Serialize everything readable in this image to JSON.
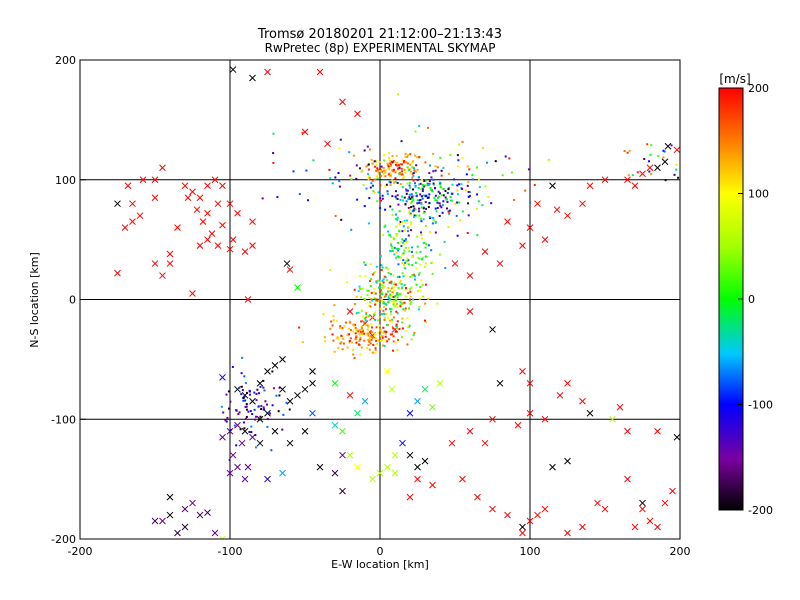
{
  "chart_data": {
    "type": "scatter",
    "title": "Tromsø 20180201 21:12:00–21:13:43",
    "subtitle": "RwPretec (8p) EXPERIMENTAL SKYMAP",
    "xlabel": "E-W location [km]",
    "ylabel": "N-S location [km]",
    "xlim": [
      -200,
      200
    ],
    "ylim": [
      -200,
      200
    ],
    "x_ticks": [
      "-200",
      "-100",
      "0",
      "100",
      "200"
    ],
    "y_ticks": [
      "-200",
      "-100",
      "0",
      "100",
      "200"
    ],
    "grid": true,
    "colorbar": {
      "label": "[m/s]",
      "range": [
        -200,
        200
      ],
      "ticks": [
        "200",
        "100",
        "0",
        "-100",
        "-200"
      ],
      "colormap": "rainbow: black(-200) - violet - blue - cyan - green(0) - yellow - orange - red(200)"
    },
    "markers": {
      "x": "large cross markers",
      "dot": "small dot markers"
    },
    "series": [
      {
        "marker": "x",
        "points": [
          [
            -98,
            192,
            -200
          ],
          [
            -85,
            185,
            -200
          ],
          [
            -75,
            190,
            200
          ],
          [
            -40,
            190,
            200
          ],
          [
            -25,
            165,
            200
          ],
          [
            -50,
            140,
            200
          ],
          [
            -15,
            155,
            200
          ],
          [
            -35,
            130,
            200
          ],
          [
            -130,
            95,
            200
          ],
          [
            -125,
            90,
            200
          ],
          [
            -120,
            85,
            200
          ],
          [
            -115,
            95,
            200
          ],
          [
            -110,
            100,
            200
          ],
          [
            -108,
            80,
            200
          ],
          [
            -115,
            72,
            200
          ],
          [
            -118,
            65,
            200
          ],
          [
            -112,
            55,
            200
          ],
          [
            -105,
            62,
            200
          ],
          [
            -100,
            80,
            200
          ],
          [
            -95,
            72,
            200
          ],
          [
            -122,
            75,
            200
          ],
          [
            -128,
            85,
            200
          ],
          [
            -105,
            95,
            200
          ],
          [
            -135,
            60,
            200
          ],
          [
            -150,
            100,
            200
          ],
          [
            -145,
            110,
            200
          ],
          [
            -165,
            80,
            200
          ],
          [
            -175,
            22,
            200
          ],
          [
            -145,
            20,
            200
          ],
          [
            -125,
            5,
            200
          ],
          [
            -85,
            45,
            200
          ],
          [
            -60,
            25,
            200
          ],
          [
            -98,
            50,
            200
          ],
          [
            -88,
            0,
            200
          ],
          [
            -62,
            30,
            -200
          ],
          [
            -55,
            10,
            0
          ],
          [
            -115,
            50,
            200
          ],
          [
            -108,
            45,
            200
          ],
          [
            115,
            95,
            -200
          ],
          [
            118,
            75,
            200
          ],
          [
            125,
            70,
            200
          ],
          [
            105,
            80,
            200
          ],
          [
            135,
            80,
            200
          ],
          [
            140,
            95,
            200
          ],
          [
            150,
            100,
            200
          ],
          [
            165,
            100,
            200
          ],
          [
            170,
            95,
            200
          ],
          [
            175,
            105,
            200
          ],
          [
            185,
            110,
            -200
          ],
          [
            190,
            115,
            -200
          ],
          [
            192,
            128,
            -200
          ],
          [
            198,
            125,
            200
          ],
          [
            180,
            110,
            200
          ],
          [
            100,
            60,
            200
          ],
          [
            110,
            50,
            200
          ],
          [
            95,
            45,
            200
          ],
          [
            80,
            30,
            200
          ],
          [
            70,
            40,
            200
          ],
          [
            60,
            20,
            200
          ],
          [
            50,
            30,
            200
          ],
          [
            85,
            65,
            200
          ],
          [
            75,
            -25,
            -200
          ],
          [
            60,
            -10,
            200
          ],
          [
            -10,
            -20,
            200
          ],
          [
            -5,
            -15,
            200
          ],
          [
            10,
            -25,
            200
          ],
          [
            -20,
            -10,
            200
          ],
          [
            -80,
            -70,
            -200
          ],
          [
            -75,
            -60,
            -200
          ],
          [
            -70,
            -55,
            -200
          ],
          [
            -65,
            -50,
            -200
          ],
          [
            -85,
            -85,
            -200
          ],
          [
            -90,
            -80,
            -200
          ],
          [
            -95,
            -75,
            -200
          ],
          [
            -60,
            -85,
            -200
          ],
          [
            -55,
            -80,
            -200
          ],
          [
            -50,
            -75,
            -200
          ],
          [
            -75,
            -95,
            -200
          ],
          [
            -80,
            -100,
            -200
          ],
          [
            -90,
            -110,
            -200
          ],
          [
            -95,
            -105,
            -160
          ],
          [
            -100,
            -110,
            -160
          ],
          [
            -92,
            -120,
            -160
          ],
          [
            -98,
            -130,
            -160
          ],
          [
            -88,
            -140,
            -160
          ],
          [
            -105,
            -115,
            -160
          ],
          [
            -95,
            -140,
            -160
          ],
          [
            -85,
            -115,
            -140
          ],
          [
            -80,
            -120,
            -200
          ],
          [
            -70,
            -110,
            -200
          ],
          [
            -60,
            -120,
            -200
          ],
          [
            -50,
            -110,
            -200
          ],
          [
            -65,
            -75,
            -200
          ],
          [
            -45,
            -60,
            -200
          ],
          [
            -100,
            -145,
            -140
          ],
          [
            -75,
            -150,
            -120
          ],
          [
            -105,
            -65,
            -120
          ],
          [
            -90,
            -150,
            -140
          ],
          [
            -65,
            -145,
            -60
          ],
          [
            -40,
            -140,
            -200
          ],
          [
            -25,
            -130,
            -160
          ],
          [
            -30,
            -145,
            -180
          ],
          [
            -25,
            -160,
            -180
          ],
          [
            -45,
            -70,
            -200
          ],
          [
            -30,
            -70,
            0
          ],
          [
            -20,
            -130,
            60
          ],
          [
            -15,
            -140,
            100
          ],
          [
            0,
            -145,
            60
          ],
          [
            5,
            -140,
            60
          ],
          [
            10,
            -130,
            60
          ],
          [
            20,
            -130,
            -200
          ],
          [
            30,
            -135,
            -200
          ],
          [
            25,
            -140,
            -200
          ],
          [
            15,
            -120,
            -100
          ],
          [
            -120,
            -180,
            -180
          ],
          [
            -130,
            -190,
            -180
          ],
          [
            -135,
            -195,
            -180
          ],
          [
            -140,
            -180,
            -200
          ],
          [
            -145,
            -185,
            -160
          ],
          [
            -110,
            -195,
            -160
          ],
          [
            -125,
            -170,
            -160
          ],
          [
            -115,
            -178,
            -170
          ],
          [
            -130,
            -175,
            -170
          ],
          [
            -140,
            -165,
            -200
          ],
          [
            -150,
            -185,
            -170
          ],
          [
            -105,
            -200,
            80
          ],
          [
            92,
            -105,
            200
          ],
          [
            100,
            -95,
            200
          ],
          [
            110,
            -100,
            200
          ],
          [
            95,
            -60,
            200
          ],
          [
            100,
            -70,
            200
          ],
          [
            120,
            -80,
            200
          ],
          [
            125,
            -70,
            200
          ],
          [
            135,
            -85,
            200
          ],
          [
            140,
            -95,
            -200
          ],
          [
            155,
            -100,
            60
          ],
          [
            160,
            -90,
            200
          ],
          [
            165,
            -110,
            200
          ],
          [
            185,
            -110,
            200
          ],
          [
            198,
            -115,
            -200
          ],
          [
            115,
            -140,
            -200
          ],
          [
            125,
            -135,
            -200
          ],
          [
            165,
            -150,
            200
          ],
          [
            175,
            -170,
            -200
          ],
          [
            180,
            -185,
            200
          ],
          [
            175,
            -175,
            200
          ],
          [
            95,
            -195,
            200
          ],
          [
            100,
            -185,
            200
          ],
          [
            110,
            -175,
            200
          ],
          [
            125,
            -195,
            200
          ],
          [
            135,
            -190,
            200
          ],
          [
            145,
            -170,
            200
          ],
          [
            -20,
            -80,
            200
          ],
          [
            -15,
            -95,
            -20
          ],
          [
            -10,
            -85,
            -60
          ],
          [
            -25,
            -110,
            20
          ],
          [
            -30,
            -105,
            -40
          ],
          [
            -45,
            -95,
            -80
          ],
          [
            30,
            -75,
            -20
          ],
          [
            25,
            -85,
            -60
          ],
          [
            20,
            -95,
            -100
          ],
          [
            35,
            -90,
            40
          ],
          [
            48,
            -120,
            200
          ],
          [
            60,
            -110,
            200
          ],
          [
            70,
            -120,
            200
          ],
          [
            75,
            -100,
            200
          ],
          [
            80,
            -70,
            -200
          ],
          [
            40,
            -70,
            60
          ],
          [
            5,
            -60,
            100
          ],
          [
            8,
            -75,
            60
          ],
          [
            -5,
            -30,
            200
          ],
          [
            20,
            -165,
            200
          ],
          [
            25,
            -150,
            200
          ],
          [
            35,
            -155,
            200
          ],
          [
            10,
            -145,
            60
          ],
          [
            -5,
            -150,
            60
          ],
          [
            -150,
            85,
            200
          ],
          [
            -160,
            70,
            200
          ],
          [
            -170,
            60,
            200
          ],
          [
            -158,
            100,
            200
          ],
          [
            -168,
            95,
            200
          ],
          [
            -165,
            65,
            200
          ],
          [
            -175,
            80,
            -200
          ],
          [
            -85,
            65,
            200
          ],
          [
            -90,
            40,
            200
          ],
          [
            -100,
            42,
            200
          ],
          [
            -120,
            45,
            200
          ],
          [
            -140,
            38,
            200
          ],
          [
            -140,
            30,
            200
          ],
          [
            -150,
            30,
            200
          ],
          [
            55,
            -150,
            200
          ],
          [
            65,
            -165,
            200
          ],
          [
            75,
            -175,
            200
          ],
          [
            85,
            -180,
            200
          ],
          [
            95,
            -190,
            -200
          ],
          [
            105,
            -180,
            200
          ],
          [
            150,
            -175,
            200
          ],
          [
            170,
            -190,
            200
          ],
          [
            185,
            -190,
            200
          ],
          [
            190,
            -170,
            200
          ],
          [
            195,
            -160,
            200
          ]
        ]
      },
      {
        "marker": "dot",
        "points_clusters": [
          {
            "center": [
              10,
              110
            ],
            "spread": [
              18,
              10
            ],
            "count": 120,
            "value_range": [
              100,
              200
            ]
          },
          {
            "center": [
              25,
              85
            ],
            "spread": [
              25,
              20
            ],
            "count": 220,
            "value_range": [
              -200,
              40
            ]
          },
          {
            "center": [
              15,
              40
            ],
            "spread": [
              20,
              30
            ],
            "count": 160,
            "value_range": [
              -80,
              120
            ]
          },
          {
            "center": [
              5,
              0
            ],
            "spread": [
              20,
              20
            ],
            "count": 220,
            "value_range": [
              -60,
              200
            ]
          },
          {
            "center": [
              -10,
              -30
            ],
            "spread": [
              22,
              12
            ],
            "count": 160,
            "value_range": [
              100,
              200
            ]
          },
          {
            "center": [
              -85,
              -90
            ],
            "spread": [
              20,
              25
            ],
            "count": 90,
            "value_range": [
              -200,
              -60
            ]
          },
          {
            "center": [
              60,
              100
            ],
            "spread": [
              40,
              30
            ],
            "count": 70,
            "value_range": [
              -200,
              200
            ]
          },
          {
            "center": [
              -20,
              110
            ],
            "spread": [
              40,
              30
            ],
            "count": 50,
            "value_range": [
              -200,
              200
            ]
          },
          {
            "center": [
              180,
              115
            ],
            "spread": [
              20,
              15
            ],
            "count": 25,
            "value_range": [
              -200,
              200
            ]
          }
        ]
      }
    ]
  }
}
